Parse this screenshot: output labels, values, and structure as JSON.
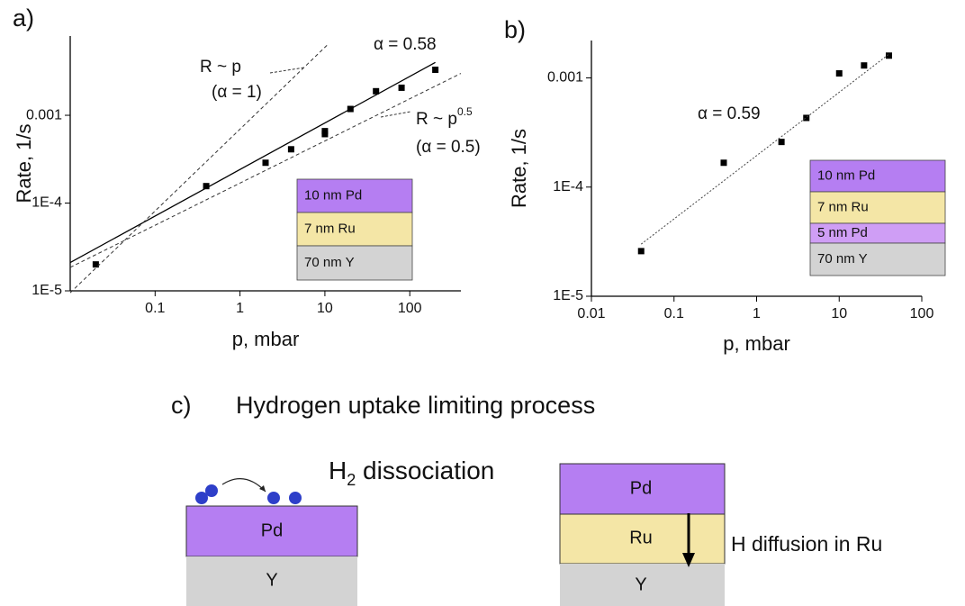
{
  "chart_data": [
    {
      "type": "scatter",
      "panel": "a)",
      "xlabel": "p, mbar",
      "ylabel": "Rate, 1/s",
      "xscale": "log",
      "yscale": "log",
      "xlim": [
        0.01,
        400
      ],
      "ylim": [
        1e-05,
        0.008
      ],
      "xticks": [
        0.1,
        1,
        10,
        100
      ],
      "yticks": [
        {
          "value": 1e-05,
          "label": "1E-5"
        },
        {
          "value": 0.0001,
          "label": "1E-4"
        },
        0.001
      ],
      "series": [
        {
          "mode": "markers",
          "color": "#000000",
          "x": [
            0.02,
            0.4,
            2,
            4,
            10,
            10,
            20,
            40,
            80,
            200
          ],
          "values": [
            2e-05,
            0.000156,
            0.000288,
            0.00041,
            0.00061,
            0.00066,
            0.00118,
            0.00188,
            0.00206,
            0.0033
          ]
        },
        {
          "mode": "solid",
          "color": "#000000",
          "x": [
            0.01,
            200
          ],
          "values": [
            2.1e-05,
            0.004
          ]
        },
        {
          "mode": "dashed",
          "color": "#333333",
          "x": [
            0.01,
            11
          ],
          "values": [
            9.5e-06,
            0.0065
          ]
        },
        {
          "mode": "dashed",
          "color": "#333333",
          "x": [
            0.01,
            400
          ],
          "values": [
            1.85e-05,
            0.003
          ]
        }
      ],
      "annotations": [
        {
          "text": "α = 0.58"
        },
        {
          "text": "R ~ p"
        },
        {
          "text": "(α = 1)"
        },
        {
          "text": "R ~ p",
          "sup": "0.5"
        },
        {
          "text": "(α = 0.5)"
        }
      ],
      "inset": [
        {
          "label": "10 nm Pd",
          "color": "#b57ef2"
        },
        {
          "label": "7 nm Ru",
          "color": "#f4e6a6"
        },
        {
          "label": "70 nm Y",
          "color": "#d3d3d3"
        }
      ]
    },
    {
      "type": "scatter",
      "panel": "b)",
      "xlabel": "p, mbar",
      "ylabel": "Rate, 1/s",
      "xscale": "log",
      "yscale": "log",
      "xlim": [
        0.01,
        100
      ],
      "ylim": [
        1e-05,
        0.0022
      ],
      "xticks": [
        0.01,
        0.1,
        1,
        10,
        100
      ],
      "yticks": [
        {
          "value": 1e-05,
          "label": "1E-5"
        },
        {
          "value": 0.0001,
          "label": "1E-4"
        },
        0.001
      ],
      "series": [
        {
          "mode": "markers",
          "color": "#000000",
          "x": [
            0.04,
            0.4,
            2,
            4,
            10,
            20,
            40
          ],
          "values": [
            2.59e-05,
            0.000167,
            0.000259,
            0.00043,
            0.0011,
            0.0013,
            0.0016
          ]
        },
        {
          "mode": "dotted",
          "color": "#444444",
          "x": [
            0.04,
            40
          ],
          "values": [
            3e-05,
            0.00165
          ]
        }
      ],
      "annotations": [
        {
          "text": "α = 0.59"
        }
      ],
      "inset": [
        {
          "label": "10 nm Pd",
          "color": "#b57ef2"
        },
        {
          "label": "7 nm Ru",
          "color": "#f4e6a6"
        },
        {
          "label": "5 nm Pd",
          "color": "#cf9ef5"
        },
        {
          "label": "70 nm Y",
          "color": "#d3d3d3"
        }
      ]
    }
  ],
  "diagram": {
    "panel": "c)",
    "title": "Hydrogen uptake limiting process",
    "left": {
      "layers": [
        "Pd",
        "Y"
      ],
      "caption": {
        "text": "H",
        "sub": "2",
        "rest": " dissociation"
      }
    },
    "right": {
      "layers": [
        "Pd",
        "Ru",
        "Y"
      ],
      "caption": "H diffusion in Ru"
    }
  }
}
